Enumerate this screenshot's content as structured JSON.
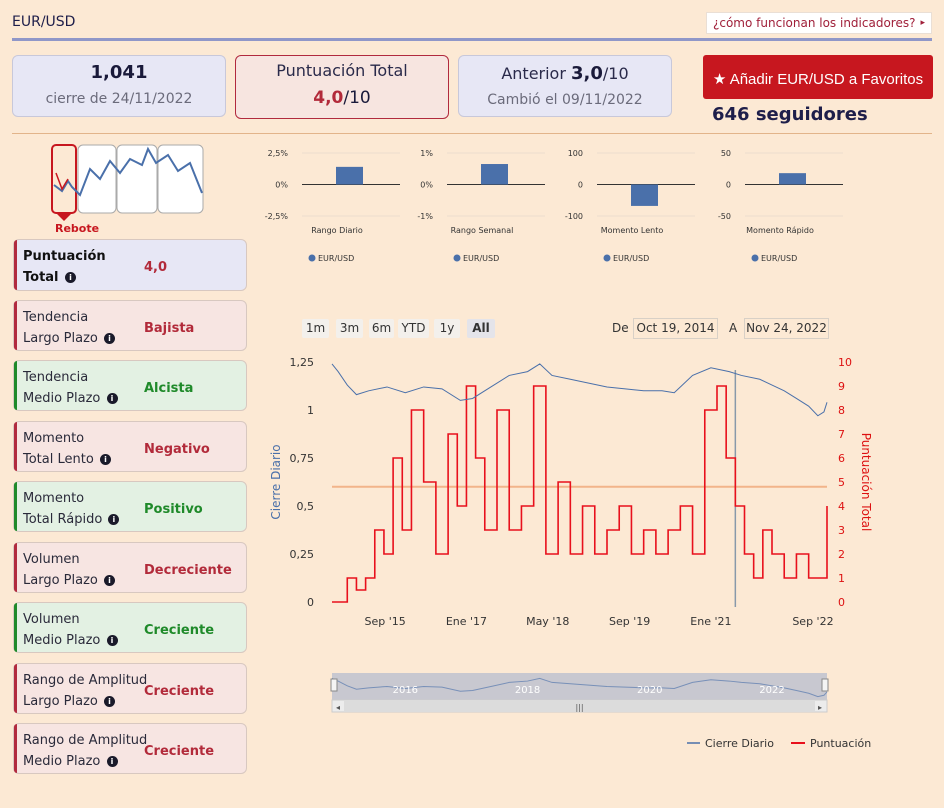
{
  "header": {
    "title": "EUR/USD",
    "help_link": "¿cómo funcionan los indicadores?",
    "help_arrow": "▸"
  },
  "stats": {
    "close_value": "1,041",
    "close_date": "cierre de 24/11/2022",
    "total_label": "Puntuación Total",
    "total_score": "4,0",
    "total_suffix": "/10",
    "prev_label": "Anterior",
    "prev_score": "3,0",
    "prev_suffix": "/10",
    "changed": "Cambió el 09/11/2022"
  },
  "favorite": {
    "label": "Añadir EUR/USD a Favoritos",
    "followers": "646 seguidores"
  },
  "pattern": {
    "label": "Rebote"
  },
  "indicators": [
    {
      "line1": "Puntuación",
      "line2": "Total",
      "value": "4,0",
      "tone": "blue"
    },
    {
      "line1": "Tendencia",
      "line2": "Largo Plazo",
      "value": "Bajista",
      "tone": "red"
    },
    {
      "line1": "Tendencia",
      "line2": "Medio Plazo",
      "value": "Alcista",
      "tone": "green"
    },
    {
      "line1": "Momento",
      "line2": "Total Lento",
      "value": "Negativo",
      "tone": "red"
    },
    {
      "line1": "Momento",
      "line2": "Total Rápido",
      "value": "Positivo",
      "tone": "green"
    },
    {
      "line1": "Volumen",
      "line2": "Largo Plazo",
      "value": "Decreciente",
      "tone": "red"
    },
    {
      "line1": "Volumen",
      "line2": "Medio Plazo",
      "value": "Creciente",
      "tone": "green"
    },
    {
      "line1": "Rango de Amplitud",
      "line2": "Largo Plazo",
      "value": "Creciente",
      "tone": "red"
    },
    {
      "line1": "Rango de Amplitud",
      "line2": "Medio Plazo",
      "value": "Creciente",
      "tone": "red"
    }
  ],
  "range_selector": {
    "buttons": [
      "1m",
      "3m",
      "6m",
      "YTD",
      "1y",
      "All"
    ],
    "active": "All",
    "from_label": "De",
    "from": "Oct 19, 2014",
    "to_label": "A",
    "to": "Nov 24, 2022"
  },
  "colors": {
    "accent_red": "#c7171f",
    "series_blue": "#4a70aa",
    "score_red": "#e8101c",
    "mid_line": "#f2b48a"
  },
  "chart_data": [
    {
      "type": "bar",
      "title": "Rango Diario",
      "categories": [
        "EUR/USD"
      ],
      "values": [
        1.4
      ],
      "ylim": [
        -2.5,
        2.5
      ],
      "tick_labels": [
        "2,5%",
        "0%",
        "-2,5%"
      ],
      "legend": "EUR/USD"
    },
    {
      "type": "bar",
      "title": "Rango Semanal",
      "categories": [
        "EUR/USD"
      ],
      "values": [
        0.65
      ],
      "ylim": [
        -1,
        1
      ],
      "tick_labels": [
        "1%",
        "0%",
        "-1%"
      ],
      "legend": "EUR/USD"
    },
    {
      "type": "bar",
      "title": "Momento Lento",
      "categories": [
        "EUR/USD"
      ],
      "values": [
        -68
      ],
      "ylim": [
        -100,
        100
      ],
      "tick_labels": [
        "100",
        "0",
        "-100"
      ],
      "legend": "EUR/USD"
    },
    {
      "type": "bar",
      "title": "Momento Rápido",
      "categories": [
        "EUR/USD"
      ],
      "values": [
        18
      ],
      "ylim": [
        -50,
        50
      ],
      "tick_labels": [
        "50",
        "0",
        "-50"
      ],
      "legend": "EUR/USD"
    },
    {
      "type": "line",
      "ylabel": "Cierre Diario",
      "y2label": "Puntuación Total",
      "xlim": [
        2014.8,
        2022.9
      ],
      "ylim": [
        0,
        1.25
      ],
      "y2lim": [
        0,
        10
      ],
      "y_ticks": [
        "1,25",
        "1",
        "0,75",
        "0,5",
        "0,25",
        "0"
      ],
      "y2_ticks": [
        "10",
        "9",
        "8",
        "7",
        "6",
        "5",
        "4",
        "3",
        "2",
        "1",
        "0"
      ],
      "x_ticks": [
        {
          "label": "Sep '15",
          "t": 2015.67
        },
        {
          "label": "Ene '17",
          "t": 2017.0
        },
        {
          "label": "May '18",
          "t": 2018.33
        },
        {
          "label": "Sep '19",
          "t": 2019.67
        },
        {
          "label": "Ene '21",
          "t": 2021.0
        },
        {
          "label": "Sep '22",
          "t": 2022.67
        }
      ],
      "reference_line": 4.8,
      "cursor_t": 2021.4,
      "series": [
        {
          "name": "Cierre Diario",
          "x": [
            2014.8,
            2014.9,
            2015.05,
            2015.2,
            2015.4,
            2015.7,
            2016.0,
            2016.3,
            2016.6,
            2016.9,
            2017.1,
            2017.4,
            2017.7,
            2018.0,
            2018.2,
            2018.4,
            2018.7,
            2019.0,
            2019.3,
            2019.6,
            2019.9,
            2020.2,
            2020.4,
            2020.7,
            2021.0,
            2021.3,
            2021.5,
            2021.8,
            2022.0,
            2022.2,
            2022.4,
            2022.6,
            2022.75,
            2022.85,
            2022.9
          ],
          "values": [
            1.24,
            1.2,
            1.13,
            1.08,
            1.1,
            1.12,
            1.09,
            1.12,
            1.11,
            1.05,
            1.06,
            1.12,
            1.18,
            1.2,
            1.24,
            1.18,
            1.16,
            1.14,
            1.12,
            1.11,
            1.1,
            1.1,
            1.09,
            1.18,
            1.22,
            1.2,
            1.18,
            1.16,
            1.13,
            1.1,
            1.06,
            1.02,
            0.97,
            0.99,
            1.04
          ]
        },
        {
          "name": "Puntuación",
          "x": [
            2014.8,
            2015.05,
            2015.2,
            2015.35,
            2015.5,
            2015.65,
            2015.8,
            2015.95,
            2016.1,
            2016.3,
            2016.5,
            2016.7,
            2016.85,
            2017.0,
            2017.15,
            2017.3,
            2017.5,
            2017.7,
            2017.9,
            2018.1,
            2018.3,
            2018.5,
            2018.7,
            2018.9,
            2019.1,
            2019.3,
            2019.5,
            2019.7,
            2019.9,
            2020.1,
            2020.3,
            2020.5,
            2020.7,
            2020.9,
            2021.1,
            2021.25,
            2021.4,
            2021.55,
            2021.7,
            2021.85,
            2022.0,
            2022.2,
            2022.4,
            2022.6,
            2022.8,
            2022.9
          ],
          "values": [
            0,
            1,
            0.5,
            1,
            3,
            2,
            6,
            3,
            8,
            5,
            2,
            7,
            4,
            9,
            6,
            3,
            8,
            3,
            4,
            9,
            2,
            5,
            2,
            4,
            2,
            3,
            4,
            2,
            3,
            2,
            3,
            4,
            2,
            8,
            9,
            6,
            4,
            2,
            1,
            3,
            2,
            1,
            2,
            1,
            1,
            4
          ]
        }
      ],
      "legend": [
        "Cierre Diario",
        "Puntuación"
      ],
      "navigator_years": [
        "2016",
        "2018",
        "2020",
        "2022"
      ]
    }
  ]
}
